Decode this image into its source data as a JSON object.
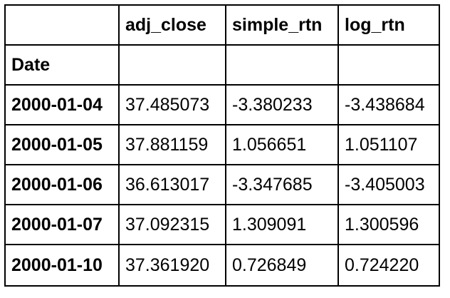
{
  "table": {
    "columns": [
      "adj_close",
      "simple_rtn",
      "log_rtn"
    ],
    "index_name": "Date",
    "rows": [
      {
        "date": "2000-01-04",
        "adj_close": "37.485073",
        "simple_rtn": "-3.380233",
        "log_rtn": "-3.438684"
      },
      {
        "date": "2000-01-05",
        "adj_close": "37.881159",
        "simple_rtn": "1.056651",
        "log_rtn": "1.051107"
      },
      {
        "date": "2000-01-06",
        "adj_close": "36.613017",
        "simple_rtn": "-3.347685",
        "log_rtn": "-3.405003"
      },
      {
        "date": "2000-01-07",
        "adj_close": "37.092315",
        "simple_rtn": "1.309091",
        "log_rtn": "1.300596"
      },
      {
        "date": "2000-01-10",
        "adj_close": "37.361920",
        "simple_rtn": "0.726849",
        "log_rtn": "0.724220"
      }
    ]
  }
}
